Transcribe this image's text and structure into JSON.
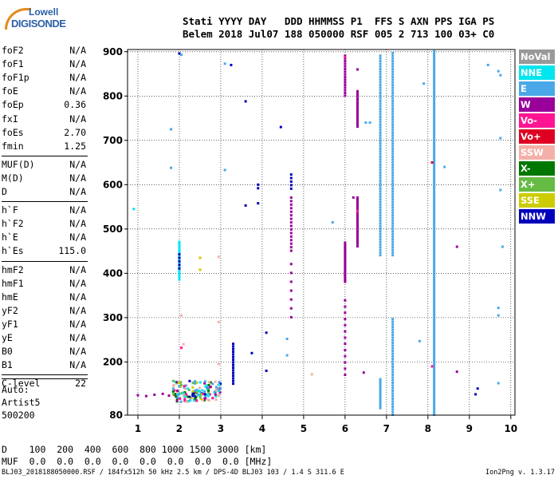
{
  "logo": {
    "line1": "Lowell",
    "line2": "DIGISONDE"
  },
  "header": {
    "labels": "Stati YYYY DAY   DDD HHMMSS P1  FFS S AXN PPS IGA PS",
    "values": "Belem 2018 Jul07 188 050000 RSF 005 2 713 100 03+ C0"
  },
  "params": [
    [
      {
        "k": "foF2",
        "v": "N/A"
      },
      {
        "k": "foF1",
        "v": "N/A"
      },
      {
        "k": "foF1p",
        "v": "N/A"
      },
      {
        "k": "foE",
        "v": "N/A"
      },
      {
        "k": "foEp",
        "v": "0.36"
      },
      {
        "k": "fxI",
        "v": "N/A"
      },
      {
        "k": "foEs",
        "v": "2.70"
      },
      {
        "k": "fmin",
        "v": "1.25"
      }
    ],
    [
      {
        "k": "MUF(D)",
        "v": "N/A"
      },
      {
        "k": "M(D)",
        "v": "N/A"
      },
      {
        "k": "D",
        "v": "N/A"
      }
    ],
    [
      {
        "k": "h`F",
        "v": "N/A"
      },
      {
        "k": "h`F2",
        "v": "N/A"
      },
      {
        "k": "h`E",
        "v": "N/A"
      },
      {
        "k": "h`Es",
        "v": "115.0"
      }
    ],
    [
      {
        "k": "hmF2",
        "v": "N/A"
      },
      {
        "k": "hmF1",
        "v": "N/A"
      },
      {
        "k": "hmE",
        "v": "N/A"
      },
      {
        "k": "yF2",
        "v": "N/A"
      },
      {
        "k": "yF1",
        "v": "N/A"
      },
      {
        "k": "yE",
        "v": "N/A"
      },
      {
        "k": "B0",
        "v": "N/A"
      },
      {
        "k": "B1",
        "v": "N/A"
      }
    ],
    [
      {
        "k": "C-level",
        "v": "22"
      }
    ]
  ],
  "auto": [
    "Auto:",
    "Artist5",
    "500200"
  ],
  "legend": [
    {
      "label": "NoVal",
      "color": "#999999"
    },
    {
      "label": "NNE",
      "color": "#00e5ee"
    },
    {
      "label": "E",
      "color": "#4aa8e8"
    },
    {
      "label": "W",
      "color": "#990099"
    },
    {
      "label": "Vo-",
      "color": "#ff1493"
    },
    {
      "label": "Vo+",
      "color": "#dd0022"
    },
    {
      "label": "SSW",
      "color": "#f4b0a8"
    },
    {
      "label": "X-",
      "color": "#007700"
    },
    {
      "label": "X+",
      "color": "#66bb44"
    },
    {
      "label": "SSE",
      "color": "#cccc00"
    },
    {
      "label": "NNW",
      "color": "#0000bb"
    }
  ],
  "bottom": {
    "d_row": "D    100  200  400  600  800 1000 1500 3000 [km]",
    "muf_row": "MUF  0.0  0.0  0.0  0.0  0.0  0.0  0.0  0.0 [MHz]"
  },
  "footer": {
    "left": "BLJ03_2018188050000.RSF / 184fx512h 50 kHz 2.5 km / DPS-4D BLJ03 103 / 1.4 S 311.6 E",
    "right": "Ion2Png v. 1.3.17"
  },
  "chart_data": {
    "type": "scatter",
    "title": "",
    "xlabel": "",
    "ylabel": "",
    "xlim": [
      0.75,
      10.1
    ],
    "ylim": [
      80,
      905
    ],
    "xticks": [
      1,
      2,
      3,
      4,
      5,
      6,
      7,
      8,
      9,
      10
    ],
    "yticks": [
      80,
      200,
      300,
      400,
      500,
      600,
      700,
      800,
      900
    ],
    "grid": true,
    "traces": [
      {
        "source": "NNE",
        "x": 2.0,
        "y0": 385,
        "y1": 470,
        "dy": 5
      },
      {
        "source": "E",
        "x": 6.85,
        "y0": 440,
        "y1": 890,
        "dy": 6
      },
      {
        "source": "E",
        "x": 7.15,
        "y0": 440,
        "y1": 900,
        "dy": 6
      },
      {
        "source": "E",
        "x": 8.15,
        "y0": 80,
        "y1": 900,
        "dy": 5
      },
      {
        "source": "E",
        "x": 7.15,
        "y0": 80,
        "y1": 300,
        "dy": 6
      },
      {
        "source": "E",
        "x": 6.85,
        "y0": 95,
        "y1": 160,
        "dy": 5
      },
      {
        "source": "W",
        "x": 6.0,
        "y0": 380,
        "y1": 470,
        "dy": 4
      },
      {
        "source": "W",
        "x": 6.3,
        "y0": 460,
        "y1": 570,
        "dy": 5
      },
      {
        "source": "W",
        "x": 6.3,
        "y0": 730,
        "y1": 810,
        "dy": 5
      },
      {
        "source": "W",
        "x": 6.0,
        "y0": 800,
        "y1": 890,
        "dy": 6
      },
      {
        "source": "W",
        "x": 6.0,
        "y0": 170,
        "y1": 340,
        "dy": 14
      },
      {
        "source": "W",
        "x": 4.7,
        "y0": 450,
        "y1": 570,
        "dy": 8
      },
      {
        "source": "W",
        "x": 4.7,
        "y0": 300,
        "y1": 420,
        "dy": 20
      },
      {
        "source": "NNW",
        "x": 3.3,
        "y0": 150,
        "y1": 240,
        "dy": 6
      },
      {
        "source": "NNW",
        "x": 4.7,
        "y0": 590,
        "y1": 625,
        "dy": 8
      },
      {
        "source": "NNW",
        "x": 2.0,
        "y0": 410,
        "y1": 445,
        "dy": 8
      }
    ],
    "points": [
      {
        "source": "NNE",
        "x": 0.9,
        "y": 545
      },
      {
        "source": "E",
        "x": 1.8,
        "y": 725
      },
      {
        "source": "E",
        "x": 1.8,
        "y": 638
      },
      {
        "source": "E",
        "x": 3.1,
        "y": 873
      },
      {
        "source": "NNW",
        "x": 3.25,
        "y": 870
      },
      {
        "source": "E",
        "x": 3.1,
        "y": 633
      },
      {
        "source": "NNW",
        "x": 3.6,
        "y": 788
      },
      {
        "source": "NNW",
        "x": 3.9,
        "y": 600
      },
      {
        "source": "NNW",
        "x": 3.9,
        "y": 592
      },
      {
        "source": "NNW",
        "x": 3.9,
        "y": 558
      },
      {
        "source": "NNW",
        "x": 3.6,
        "y": 553
      },
      {
        "source": "NNW",
        "x": 4.45,
        "y": 730
      },
      {
        "source": "NNW",
        "x": 4.1,
        "y": 266
      },
      {
        "source": "NNW",
        "x": 3.75,
        "y": 220
      },
      {
        "source": "NNW",
        "x": 4.1,
        "y": 180
      },
      {
        "source": "E",
        "x": 4.6,
        "y": 252
      },
      {
        "source": "E",
        "x": 4.6,
        "y": 215
      },
      {
        "source": "E",
        "x": 5.7,
        "y": 515
      },
      {
        "source": "E",
        "x": 6.5,
        "y": 740
      },
      {
        "source": "E",
        "x": 6.6,
        "y": 740
      },
      {
        "source": "E",
        "x": 7.8,
        "y": 247
      },
      {
        "source": "E",
        "x": 7.9,
        "y": 828
      },
      {
        "source": "E",
        "x": 8.4,
        "y": 640
      },
      {
        "source": "E",
        "x": 9.45,
        "y": 870
      },
      {
        "source": "E",
        "x": 9.7,
        "y": 856
      },
      {
        "source": "E",
        "x": 9.75,
        "y": 847
      },
      {
        "source": "E",
        "x": 9.75,
        "y": 705
      },
      {
        "source": "E",
        "x": 9.75,
        "y": 588
      },
      {
        "source": "E",
        "x": 9.8,
        "y": 460
      },
      {
        "source": "E",
        "x": 9.7,
        "y": 322
      },
      {
        "source": "E",
        "x": 9.7,
        "y": 305
      },
      {
        "source": "E",
        "x": 9.7,
        "y": 152
      },
      {
        "source": "W",
        "x": 8.7,
        "y": 460
      },
      {
        "source": "W",
        "x": 8.7,
        "y": 178
      },
      {
        "source": "W",
        "x": 6.45,
        "y": 176
      },
      {
        "source": "W",
        "x": 6.3,
        "y": 860
      },
      {
        "source": "W",
        "x": 6.2,
        "y": 571
      },
      {
        "source": "Vo-",
        "x": 6.0,
        "y": 888
      },
      {
        "source": "Vo-",
        "x": 6.3,
        "y": 540
      },
      {
        "source": "Vo-",
        "x": 8.1,
        "y": 190
      },
      {
        "source": "Vo+",
        "x": 8.1,
        "y": 650
      },
      {
        "source": "SSW",
        "x": 5.2,
        "y": 172
      },
      {
        "source": "SSW",
        "x": 2.05,
        "y": 305
      },
      {
        "source": "SSW",
        "x": 2.95,
        "y": 437
      },
      {
        "source": "SSW",
        "x": 2.95,
        "y": 290
      },
      {
        "source": "SSE",
        "x": 2.5,
        "y": 435
      },
      {
        "source": "SSE",
        "x": 2.5,
        "y": 408
      },
      {
        "source": "NNW",
        "x": 9.2,
        "y": 140
      },
      {
        "source": "NNW",
        "x": 9.15,
        "y": 127
      },
      {
        "source": "NNW",
        "x": 2.0,
        "y": 896
      },
      {
        "source": "E",
        "x": 2.05,
        "y": 893
      },
      {
        "source": "SSW",
        "x": 2.1,
        "y": 240
      },
      {
        "source": "Vo-",
        "x": 2.05,
        "y": 232
      },
      {
        "source": "X-",
        "x": 2.95,
        "y": 125
      },
      {
        "source": "X+",
        "x": 2.6,
        "y": 128
      },
      {
        "source": "SSE",
        "x": 2.95,
        "y": 140
      },
      {
        "source": "SSW",
        "x": 2.95,
        "y": 195
      }
    ],
    "cluster": {
      "x0": 1.85,
      "x1": 3.0,
      "y0": 110,
      "y1": 158
    }
  }
}
